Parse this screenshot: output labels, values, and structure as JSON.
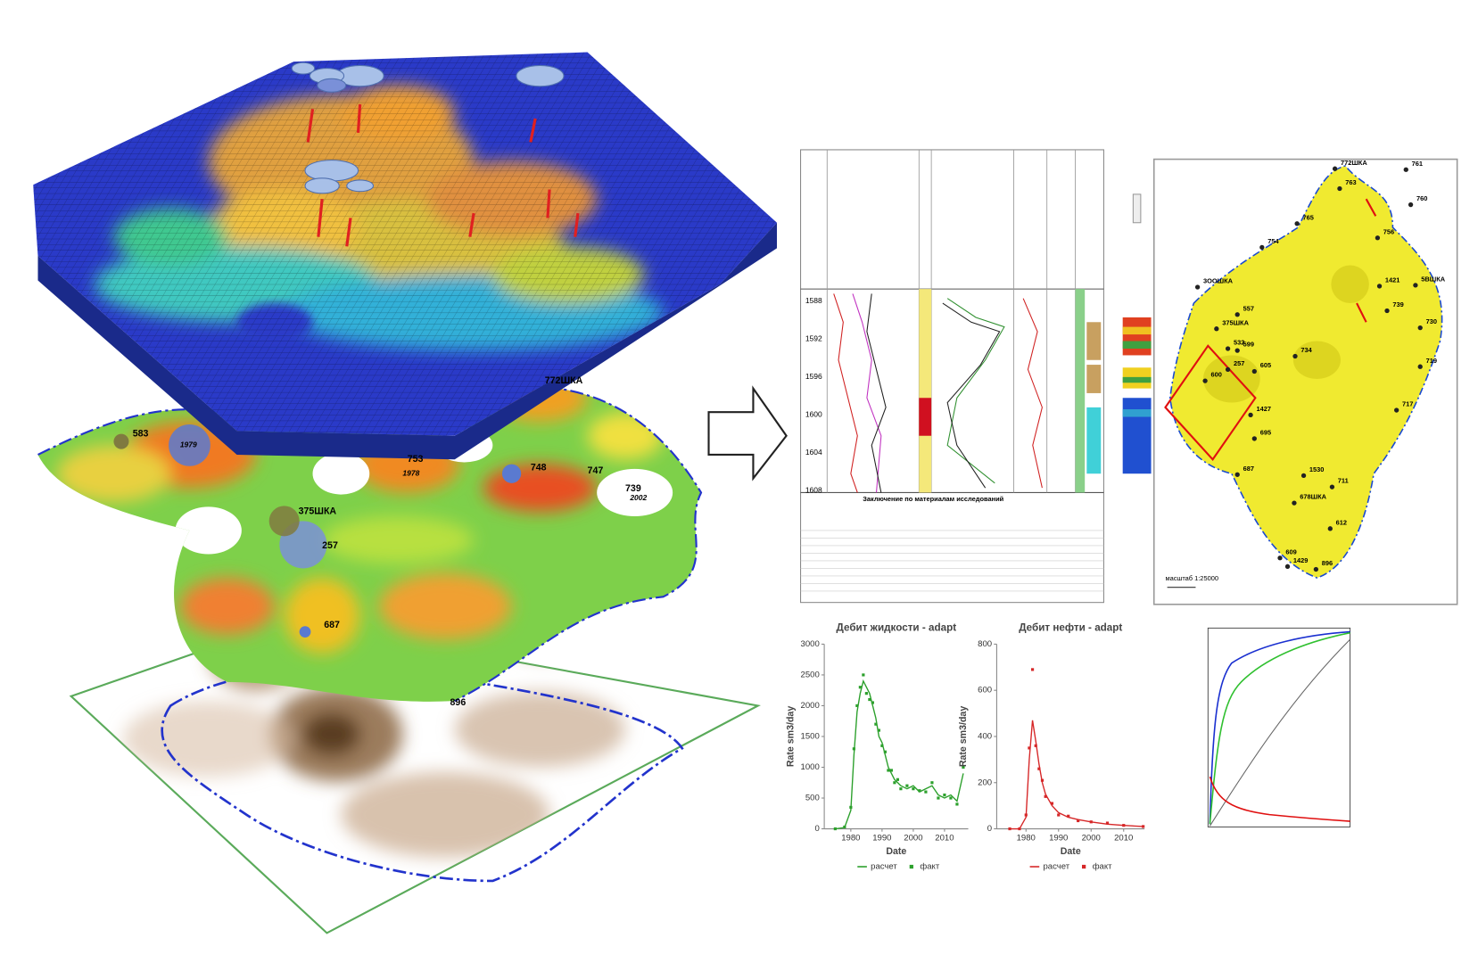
{
  "chart_data": [
    {
      "type": "line",
      "title": "Дебит жидкости - adapt",
      "ylabel": "Rate sm3/day",
      "xlabel": "Date",
      "x": [
        1975,
        1978,
        1980,
        1981,
        1982,
        1983,
        1984,
        1985,
        1986,
        1987,
        1988,
        1989,
        1990,
        1991,
        1992,
        1993,
        1994,
        1995,
        1996,
        1998,
        2000,
        2002,
        2004,
        2006,
        2008,
        2010,
        2012,
        2014,
        2016
      ],
      "series": [
        {
          "name": "расчет",
          "color": "#2ca02c",
          "values": [
            0,
            20,
            300,
            1200,
            1900,
            2200,
            2400,
            2300,
            2200,
            2000,
            1800,
            1500,
            1400,
            1200,
            1000,
            900,
            800,
            750,
            700,
            650,
            700,
            600,
            650,
            700,
            550,
            500,
            550,
            450,
            900
          ]
        },
        {
          "name": "факт",
          "color": "#2ca02c",
          "values": [
            0,
            30,
            350,
            1300,
            2000,
            2300,
            2500,
            2200,
            2100,
            2050,
            1700,
            1600,
            1350,
            1250,
            950,
            950,
            750,
            800,
            650,
            700,
            650,
            620,
            600,
            750,
            500,
            550,
            500,
            400,
            1000
          ]
        }
      ],
      "xlim": [
        1971.5,
        2017.6
      ],
      "xticks": [
        1980,
        1990,
        2000,
        2010
      ],
      "ylim": [
        0,
        3000
      ],
      "yticks": [
        0,
        500,
        1000,
        1500,
        2000,
        2500,
        3000
      ]
    },
    {
      "type": "line",
      "title": "Дебит нефти - adapt",
      "ylabel": "Rate sm3/day",
      "xlabel": "Date",
      "x": [
        1975,
        1978,
        1980,
        1981,
        1982,
        1983,
        1984,
        1985,
        1986,
        1988,
        1990,
        1993,
        1996,
        2000,
        2005,
        2010,
        2016
      ],
      "series": [
        {
          "name": "расчет",
          "color": "#d62728",
          "values": [
            0,
            0,
            50,
            300,
            470,
            380,
            280,
            200,
            150,
            100,
            70,
            50,
            40,
            30,
            20,
            15,
            10
          ]
        },
        {
          "name": "факт",
          "color": "#d62728",
          "values": [
            0,
            0,
            60,
            350,
            690,
            360,
            260,
            210,
            140,
            110,
            60,
            55,
            35,
            30,
            25,
            15,
            10
          ]
        }
      ],
      "xlim": [
        1971,
        2016.4
      ],
      "xticks": [
        1980,
        1990,
        2000,
        2010
      ],
      "ylim": [
        0,
        800
      ],
      "yticks": [
        0,
        200,
        400,
        600,
        800
      ]
    }
  ],
  "layer_map": {
    "labels": [
      "772ШКА",
      "583",
      "753",
      "748",
      "747",
      "739",
      "375ШКА",
      "257",
      "687",
      "896",
      "1979",
      "1978",
      "2002"
    ]
  },
  "right_map": {
    "labels": [
      "772ШКА",
      "761",
      "763",
      "760",
      "765",
      "756",
      "754",
      "5ВШКА",
      "1421",
      "739",
      "730",
      "599",
      "3ООШКА",
      "557",
      "375ШКА",
      "532",
      "257",
      "600",
      "605",
      "734",
      "719",
      "1427",
      "717",
      "695",
      "1530",
      "711",
      "678ШКА",
      "612",
      "609",
      "1429",
      "896",
      "687"
    ],
    "scale": "масштаб 1:25000"
  },
  "well_log": {
    "title": "Заключение по материалам исследований",
    "depths": [
      "1588",
      "1592",
      "1596",
      "1600",
      "1604",
      "1608"
    ]
  }
}
